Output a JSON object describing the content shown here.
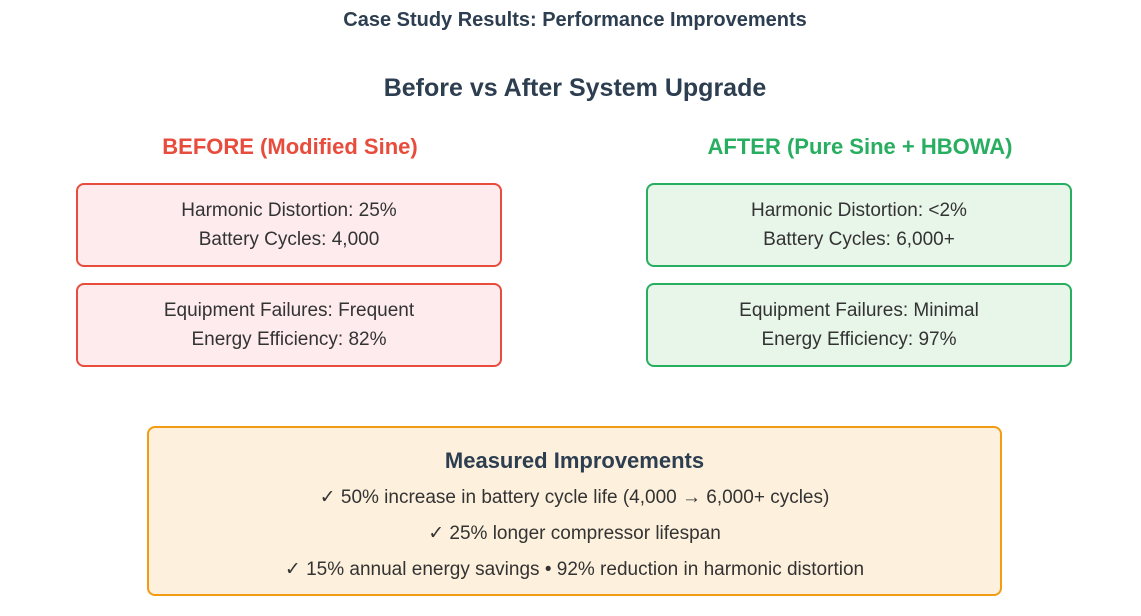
{
  "header": {
    "title": "Case Study Results: Performance Improvements",
    "subtitle": "Before vs After System Upgrade"
  },
  "before": {
    "heading": "BEFORE (Modified Sine)",
    "color": "#e74c3c",
    "cards": [
      {
        "line1": "Harmonic Distortion: 25%",
        "line2": "Battery Cycles: 4,000"
      },
      {
        "line1": "Equipment Failures: Frequent",
        "line2": "Energy Efficiency: 82%"
      }
    ]
  },
  "after": {
    "heading": "AFTER (Pure Sine + HBOWA)",
    "color": "#27ae60",
    "cards": [
      {
        "line1": "Harmonic Distortion: <2%",
        "line2": "Battery Cycles: 6,000+"
      },
      {
        "line1": "Equipment Failures: Minimal",
        "line2": "Energy Efficiency: 97%"
      }
    ]
  },
  "improvements": {
    "title": "Measured Improvements",
    "color": "#f39c12",
    "lines": [
      "✓ 50% increase in battery cycle life (4,000 → 6,000+ cycles)",
      "✓ 25% longer compressor lifespan",
      "✓ 15% annual energy savings • 92% reduction in harmonic distortion"
    ]
  }
}
